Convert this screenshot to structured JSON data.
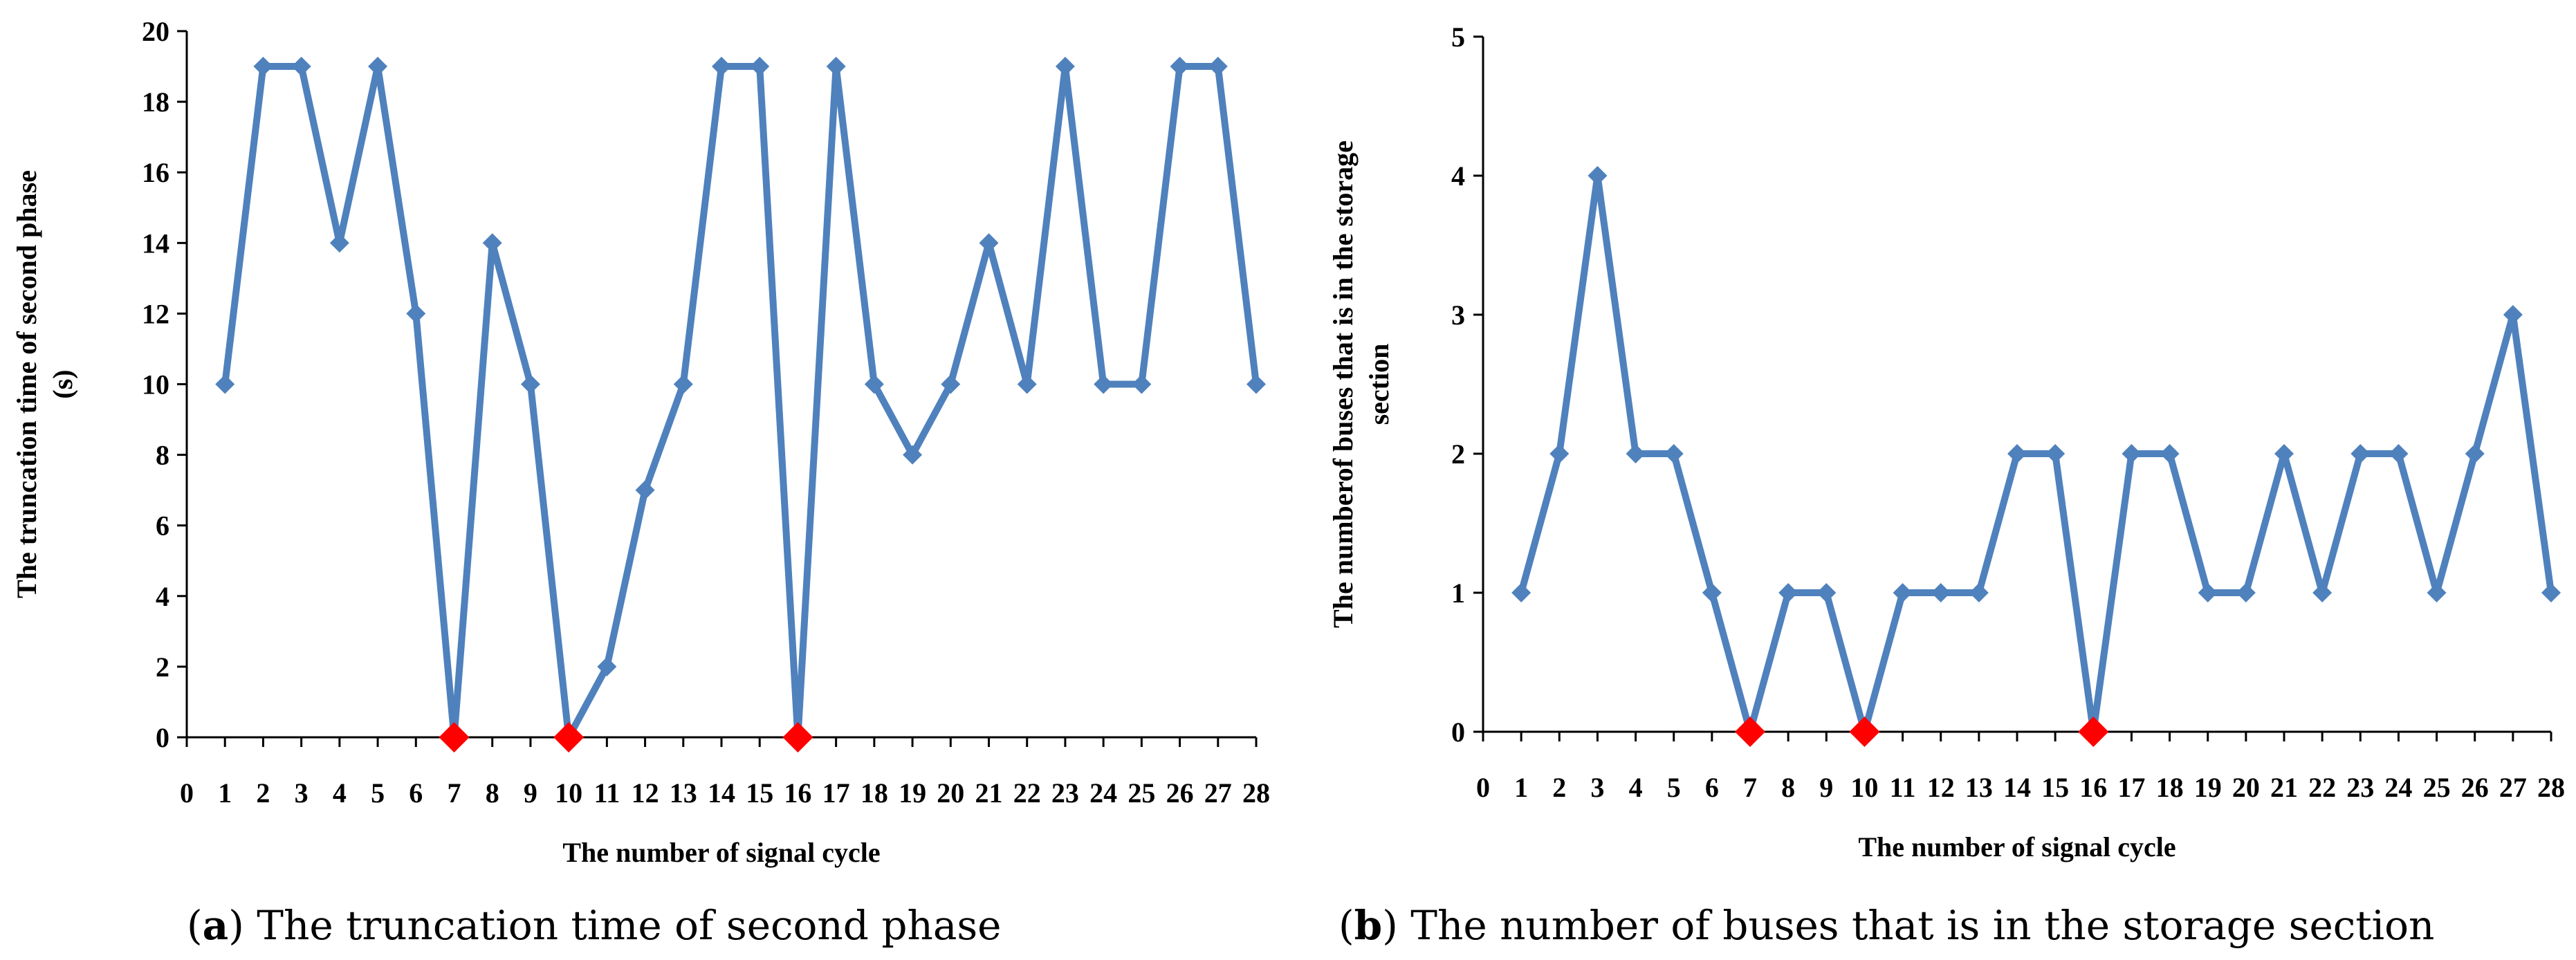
{
  "colors": {
    "series": "#4f81bd",
    "highlight": "#ff0000",
    "axis": "#000000"
  },
  "chart_data": [
    {
      "type": "line",
      "caption_letter": "a",
      "caption_text": " The truncation time of second phase",
      "xlabel": "The number of signal cycle",
      "ylabel_lines": [
        "The truncation time of second phase",
        "(s)"
      ],
      "x_ticks": [
        0,
        1,
        2,
        3,
        4,
        5,
        6,
        7,
        8,
        9,
        10,
        11,
        12,
        13,
        14,
        15,
        16,
        17,
        18,
        19,
        20,
        21,
        22,
        23,
        24,
        25,
        26,
        27,
        28
      ],
      "y_ticks": [
        0,
        2,
        4,
        6,
        8,
        10,
        12,
        14,
        16,
        18,
        20
      ],
      "xlim": [
        0,
        28
      ],
      "ylim": [
        0,
        20
      ],
      "x": [
        1,
        2,
        3,
        4,
        5,
        6,
        7,
        8,
        9,
        10,
        11,
        12,
        13,
        14,
        15,
        16,
        17,
        18,
        19,
        20,
        21,
        22,
        23,
        24,
        25,
        26,
        27,
        28
      ],
      "y": [
        10,
        19,
        19,
        14,
        19,
        12,
        0,
        14,
        10,
        0,
        2,
        7,
        10,
        19,
        19,
        0,
        19,
        10,
        8,
        10,
        14,
        10,
        19,
        10,
        10,
        19,
        19,
        10
      ],
      "highlight_x": [
        7,
        10,
        16
      ]
    },
    {
      "type": "line",
      "caption_letter": "b",
      "caption_text": " The number of buses that is in the storage section",
      "xlabel": "The number of signal cycle",
      "ylabel_lines": [
        "The numberof buses that is in the storage",
        "section"
      ],
      "x_ticks": [
        0,
        1,
        2,
        3,
        4,
        5,
        6,
        7,
        8,
        9,
        10,
        11,
        12,
        13,
        14,
        15,
        16,
        17,
        18,
        19,
        20,
        21,
        22,
        23,
        24,
        25,
        26,
        27,
        28
      ],
      "y_ticks": [
        0,
        1,
        2,
        3,
        4,
        5
      ],
      "xlim": [
        0,
        28
      ],
      "ylim": [
        0,
        5
      ],
      "x": [
        1,
        2,
        3,
        4,
        5,
        6,
        7,
        8,
        9,
        10,
        11,
        12,
        13,
        14,
        15,
        16,
        17,
        18,
        19,
        20,
        21,
        22,
        23,
        24,
        25,
        26,
        27,
        28
      ],
      "y": [
        1,
        2,
        4,
        2,
        2,
        1,
        0,
        1,
        1,
        0,
        1,
        1,
        1,
        2,
        2,
        0,
        2,
        2,
        1,
        1,
        2,
        1,
        2,
        2,
        1,
        2,
        3,
        1
      ],
      "highlight_x": [
        7,
        10,
        16
      ]
    }
  ]
}
